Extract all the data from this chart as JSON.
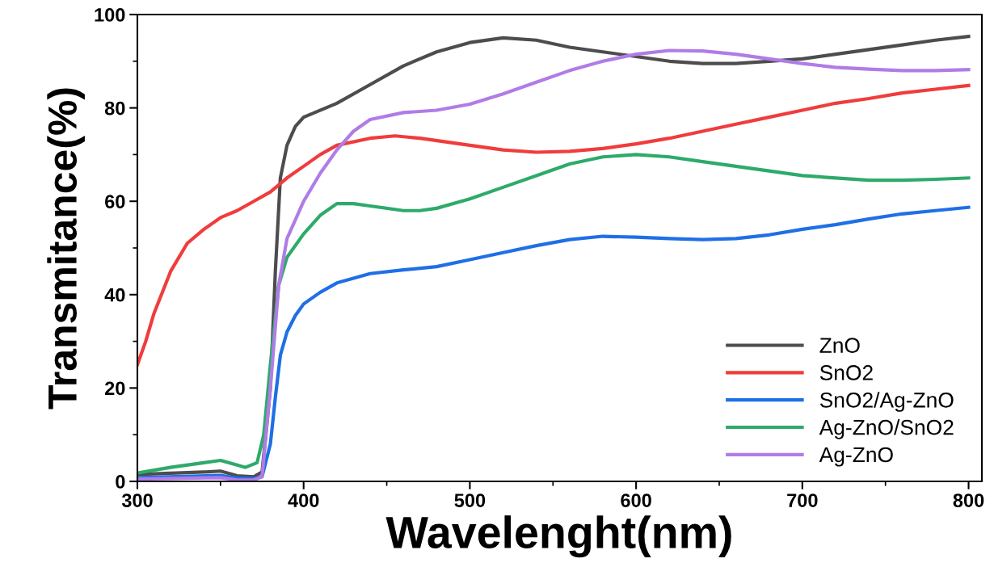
{
  "chart_data": {
    "type": "line",
    "xlabel": "Wavelenght(nm)",
    "ylabel": "Transmitance(%)",
    "xlim": [
      300,
      808
    ],
    "ylim": [
      0,
      100
    ],
    "xticks": [
      300,
      400,
      500,
      600,
      700,
      800
    ],
    "yticks": [
      0,
      20,
      40,
      60,
      80,
      100
    ],
    "grid": false,
    "legend": "bottom right",
    "marker": "none",
    "line_style": "solid",
    "series": [
      {
        "name": "ZnO",
        "color": "#4d4d4d",
        "x": [
          300,
          340,
          350,
          360,
          370,
          375,
          380,
          383,
          386,
          390,
          395,
          400,
          420,
          440,
          460,
          480,
          500,
          520,
          540,
          560,
          580,
          600,
          620,
          640,
          660,
          680,
          700,
          720,
          740,
          760,
          780,
          800
        ],
        "values": [
          1.5,
          2,
          2.2,
          1.2,
          1,
          2,
          20,
          45,
          65,
          72,
          76,
          78,
          81,
          85,
          89,
          92,
          94,
          95,
          94.5,
          93,
          92,
          91,
          90,
          89.5,
          89.5,
          90,
          90.5,
          91.5,
          92.5,
          93.5,
          94.5,
          95.3
        ]
      },
      {
        "name": "SnO2",
        "color": "#f03c3c",
        "x": [
          300,
          305,
          310,
          320,
          330,
          340,
          350,
          360,
          370,
          380,
          390,
          400,
          410,
          420,
          440,
          455,
          470,
          500,
          520,
          540,
          560,
          580,
          600,
          620,
          640,
          660,
          680,
          700,
          720,
          740,
          760,
          780,
          800
        ],
        "values": [
          25,
          30,
          36,
          45,
          51,
          54,
          56.5,
          58,
          60,
          62,
          65,
          67.5,
          70,
          72,
          73.5,
          74,
          73.5,
          72,
          71,
          70.5,
          70.7,
          71.3,
          72.3,
          73.5,
          75,
          76.5,
          78,
          79.5,
          81,
          82,
          83.2,
          84,
          84.8
        ]
      },
      {
        "name": "SnO2/Ag-ZnO",
        "color": "#1f6fe6",
        "x": [
          300,
          350,
          360,
          370,
          375,
          380,
          383,
          386,
          390,
          395,
          400,
          410,
          420,
          440,
          460,
          480,
          500,
          520,
          540,
          560,
          580,
          600,
          620,
          640,
          660,
          680,
          700,
          720,
          740,
          760,
          780,
          800
        ],
        "values": [
          0.8,
          1.3,
          0.7,
          0.6,
          1,
          8,
          18,
          27,
          32,
          35.5,
          38,
          40.5,
          42.5,
          44.5,
          45.3,
          46,
          47.5,
          49,
          50.5,
          51.8,
          52.5,
          52.3,
          52,
          51.8,
          52,
          52.8,
          54,
          55,
          56.2,
          57.3,
          58,
          58.7
        ]
      },
      {
        "name": "Ag-ZnO/SnO2",
        "color": "#2eaa6a",
        "x": [
          300,
          320,
          340,
          350,
          360,
          365,
          372,
          376,
          380,
          385,
          390,
          400,
          410,
          420,
          430,
          440,
          460,
          470,
          480,
          500,
          520,
          540,
          560,
          580,
          600,
          620,
          640,
          660,
          680,
          700,
          720,
          740,
          760,
          780,
          800
        ],
        "values": [
          1.8,
          3,
          4,
          4.5,
          3.5,
          3,
          4,
          10,
          25,
          42,
          48,
          53,
          57,
          59.5,
          59.5,
          59,
          58,
          58,
          58.5,
          60.5,
          63,
          65.5,
          68,
          69.5,
          70,
          69.5,
          68.5,
          67.5,
          66.5,
          65.5,
          65,
          64.5,
          64.5,
          64.7,
          65
        ]
      },
      {
        "name": "Ag-ZnO",
        "color": "#b07ce6",
        "x": [
          300,
          350,
          360,
          370,
          375,
          380,
          385,
          390,
          400,
          410,
          420,
          430,
          440,
          460,
          480,
          500,
          520,
          540,
          560,
          580,
          600,
          620,
          640,
          660,
          680,
          700,
          720,
          740,
          760,
          780,
          800
        ],
        "values": [
          0.5,
          0.8,
          0.3,
          0.3,
          1,
          20,
          42,
          52,
          60,
          66,
          71,
          75,
          77.5,
          79,
          79.5,
          80.8,
          83,
          85.5,
          88,
          90,
          91.5,
          92.3,
          92.2,
          91.5,
          90.5,
          89.5,
          88.7,
          88.3,
          88,
          88,
          88.2
        ]
      }
    ]
  }
}
